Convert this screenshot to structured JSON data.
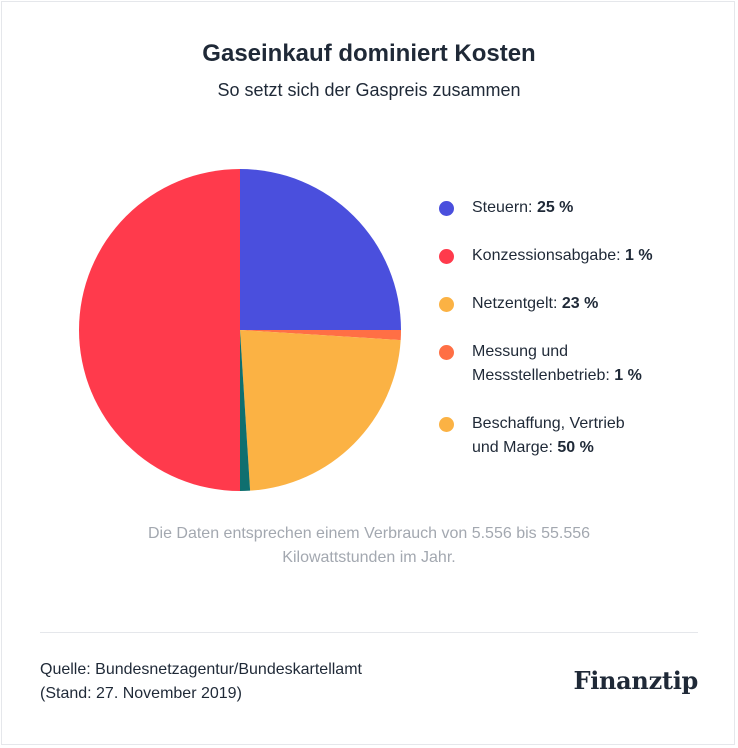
{
  "chart_data": {
    "type": "pie",
    "title": "Gaseinkauf dominiert Kosten",
    "subtitle": "So setzt sich der Gaspreis zusammen",
    "slices": [
      {
        "label": "Steuern:",
        "value": 25,
        "value_label": "25 %",
        "color": "#4a4fdd"
      },
      {
        "label": "Konzessionsabgabe:",
        "value": 1,
        "value_label": "1 %",
        "color": "#ff3a4c"
      },
      {
        "label": "Netzentgelt:",
        "value": 23,
        "value_label": "23 %",
        "color": "#fbb244"
      },
      {
        "label": "Messung und Messstellenbetrieb:",
        "value": 1,
        "value_label": "1 %",
        "color": "#ff6f45"
      },
      {
        "label": "Beschaffung, Vertrieb und Marge:",
        "value": 50,
        "value_label": "50 %",
        "color": "#fbb244"
      }
    ],
    "pie_draw_order": [
      {
        "ref": 0,
        "value": 25,
        "color": "#4a4fdd"
      },
      {
        "ref": 3,
        "value": 1,
        "color": "#ff6f45"
      },
      {
        "ref": 2,
        "value": 23,
        "color": "#fbb244"
      },
      {
        "ref": 1,
        "value": 1,
        "color": "#0f6f6f"
      },
      {
        "ref": 4,
        "value": 50,
        "color": "#ff3a4c"
      }
    ],
    "legend_position": "right"
  },
  "legend_lines": [
    [
      "Steuern: "
    ],
    [
      "Konzessionsabgabe: "
    ],
    [
      "Netzentgelt: "
    ],
    [
      "Messung und",
      "Messstellenbetrieb: "
    ],
    [
      "Beschaffung, Vertrieb",
      "und Marge: "
    ]
  ],
  "note": "Die Daten entsprechen einem Verbrauch von 5.556 bis 55.556 Kilowattstunden im Jahr.",
  "source_line1": "Quelle: Bundesnetzagentur/Bundeskartellamt",
  "source_line2": "(Stand: 27. November 2019)",
  "logo_text": "Finanztip"
}
